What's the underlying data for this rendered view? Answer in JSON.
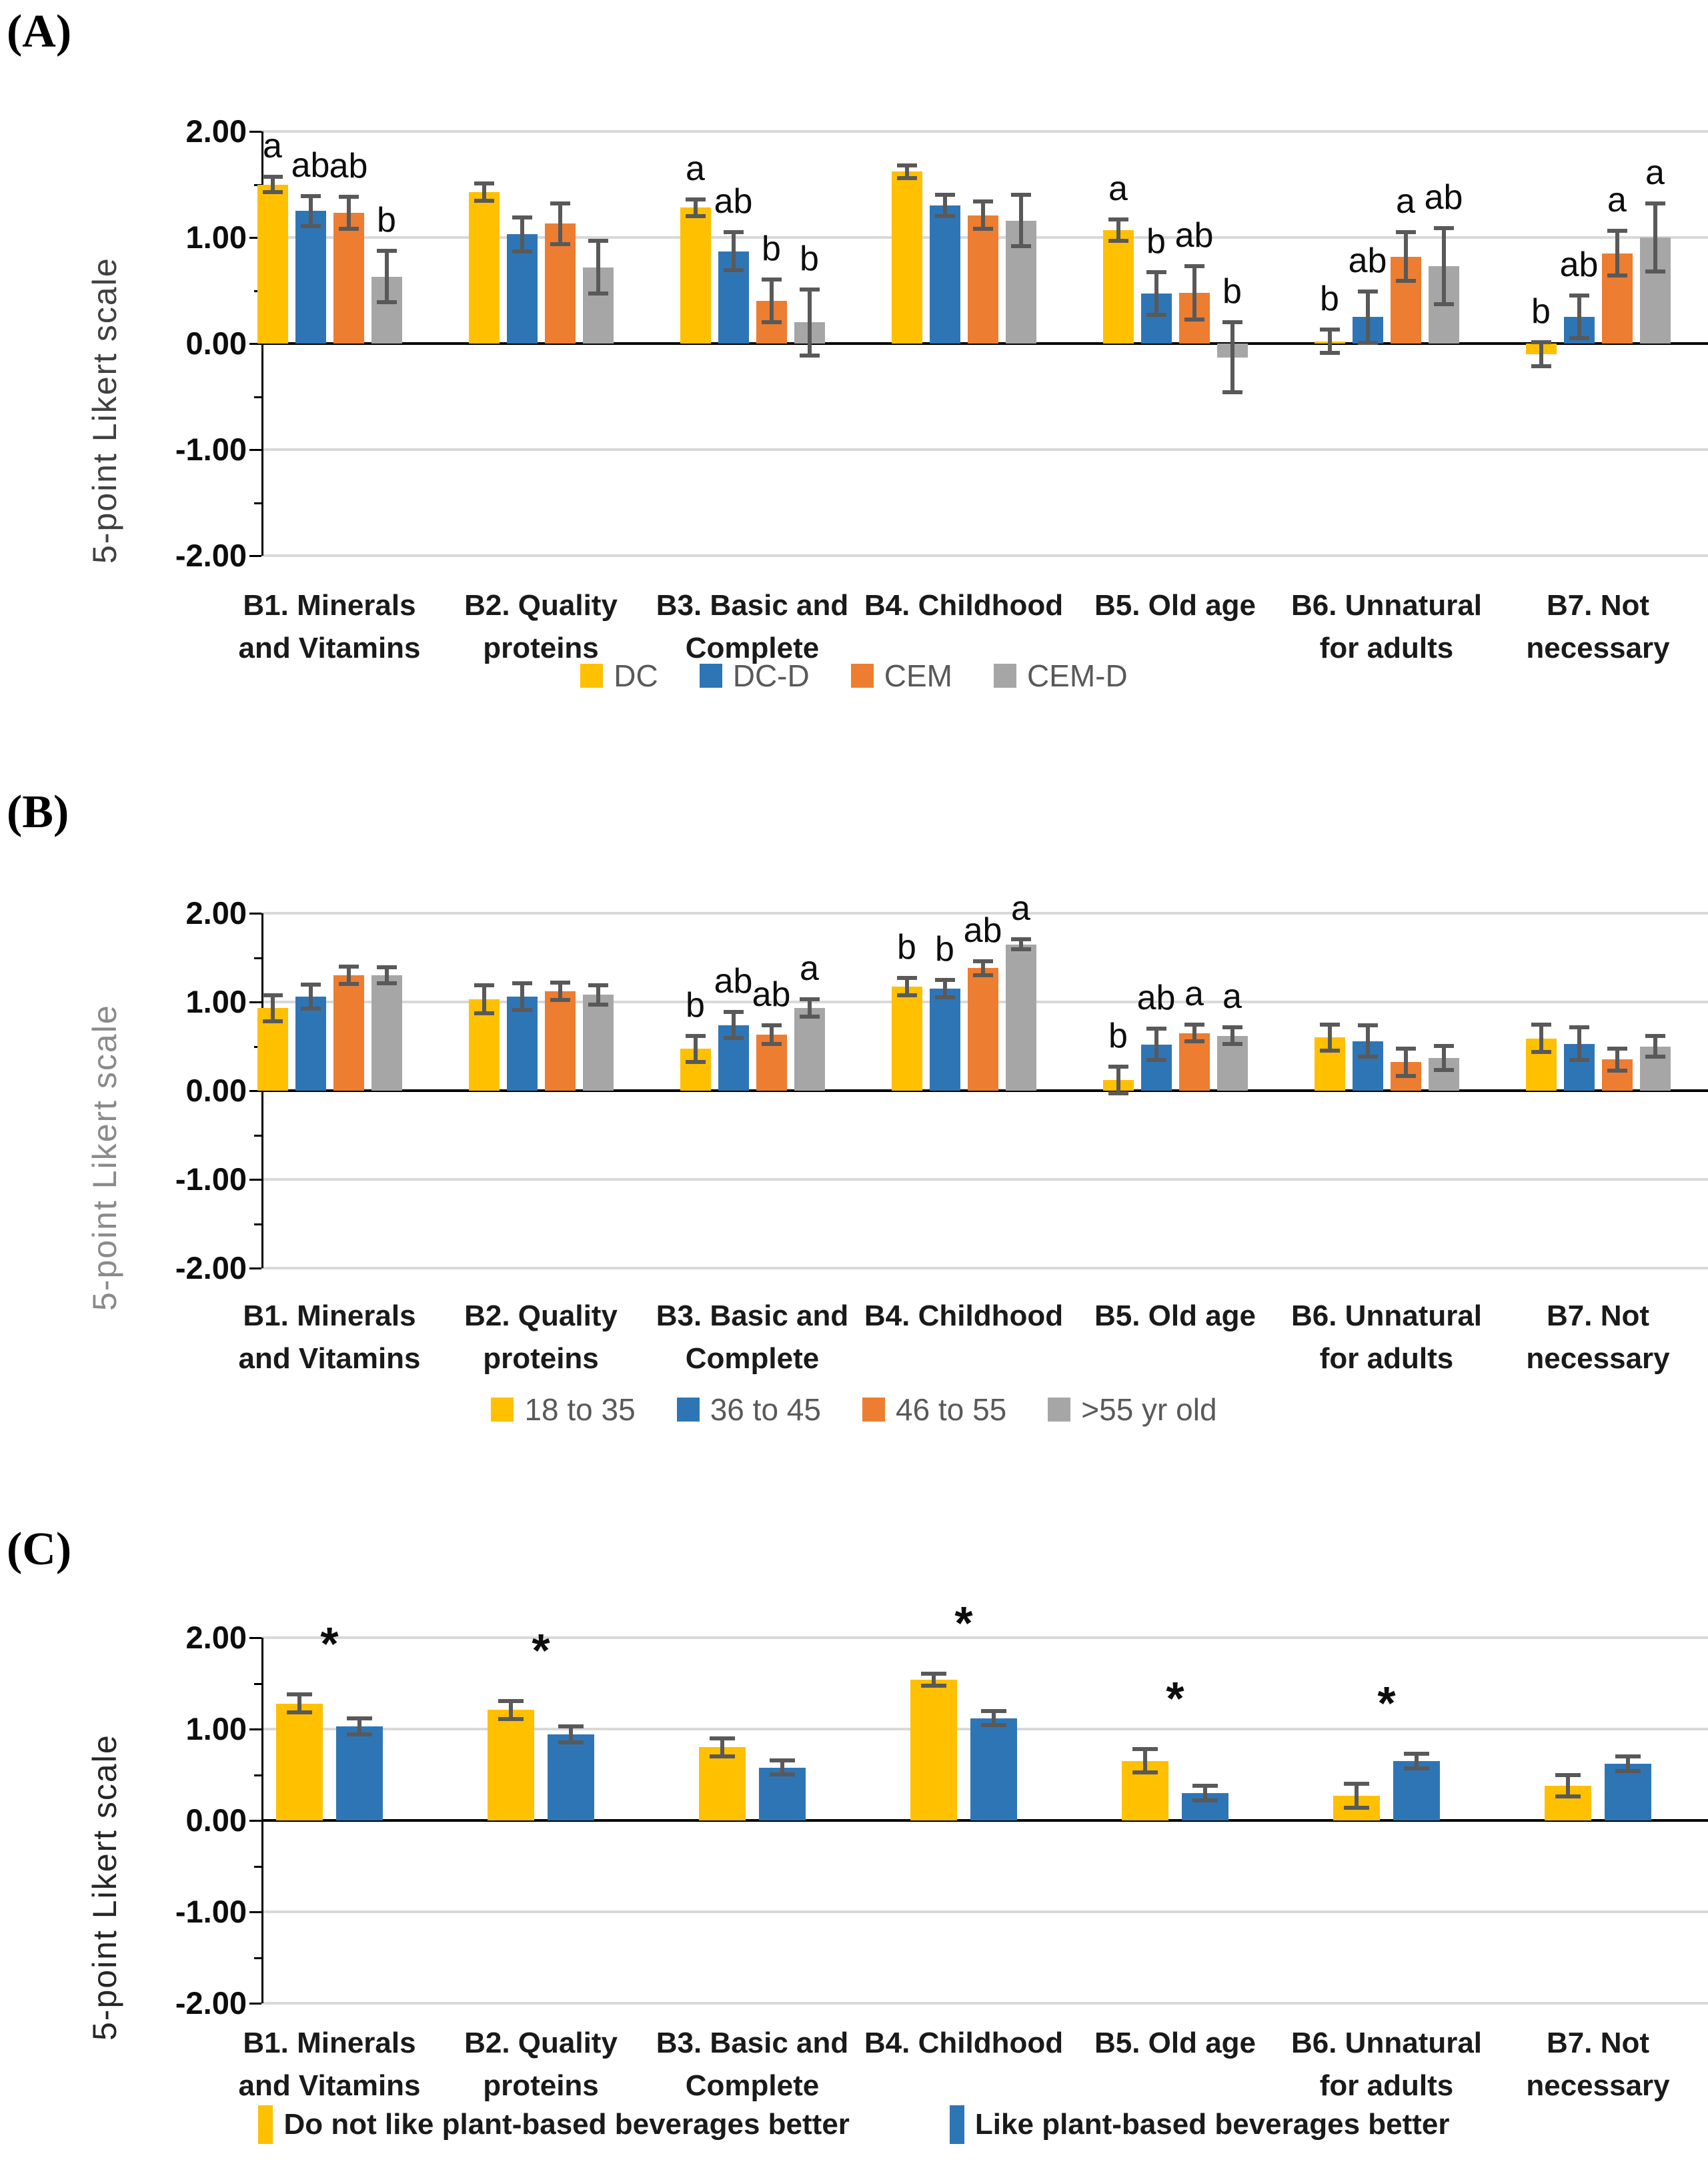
{
  "figure": {
    "panel_letters": [
      "(A)",
      "(B)",
      "(C)"
    ],
    "y_axis_title": "5-point Likert scale",
    "colors": {
      "yellow": "#FFC000",
      "blue": "#2E75B6",
      "orange": "#ED7D31",
      "gray": "#A6A6A6",
      "error_bar": "#595959",
      "gridline": "#D9D9D9",
      "zero_line": "#000000",
      "legend_text_ab": "#595959",
      "legend_text_c": "#1a1a1a",
      "y_title_a": "#404040",
      "y_title_b": "#8a8a8a",
      "y_title_c": "#262626"
    }
  },
  "chart_data": [
    {
      "type": "bar",
      "panel": "(A)",
      "ylabel": "5-point Likert scale",
      "ylim": [
        -2.0,
        2.0
      ],
      "ytick_values": [
        2,
        1,
        0,
        -1,
        -2
      ],
      "ytick_labels": [
        "2.00",
        "1.00",
        "0.00",
        "-1.00",
        "-2.00"
      ],
      "grid": true,
      "legend_position": "bottom",
      "categories": [
        "B1. Minerals and Vitamins",
        "B2. Quality proteins",
        "B3. Basic and Complete",
        "B4. Childhood",
        "B5. Old age",
        "B6. Unnatural for adults",
        "B7. Not necessary"
      ],
      "category_lines": [
        [
          "B1. Minerals",
          "and Vitamins"
        ],
        [
          "B2. Quality",
          "proteins"
        ],
        [
          "B3. Basic and",
          "Complete"
        ],
        [
          "B4. Childhood"
        ],
        [
          "B5. Old age"
        ],
        [
          "B6. Unnatural",
          "for adults"
        ],
        [
          "B7. Not",
          "necessary"
        ]
      ],
      "series": [
        {
          "name": "DC",
          "color_key": "yellow",
          "values": [
            1.5,
            1.43,
            1.28,
            1.62,
            1.07,
            0.02,
            -0.1
          ],
          "errors": [
            0.09,
            0.1,
            0.1,
            0.08,
            0.12,
            0.13,
            0.13
          ],
          "letters": [
            "a",
            "",
            "a",
            "",
            "a",
            "b",
            "b"
          ]
        },
        {
          "name": "DC-D",
          "color_key": "blue",
          "values": [
            1.25,
            1.03,
            0.87,
            1.3,
            0.47,
            0.25,
            0.25
          ],
          "errors": [
            0.16,
            0.18,
            0.2,
            0.12,
            0.22,
            0.26,
            0.22
          ],
          "letters": [
            "ab",
            "",
            "ab",
            "",
            "b",
            "ab",
            "ab"
          ]
        },
        {
          "name": "CEM",
          "color_key": "orange",
          "values": [
            1.23,
            1.13,
            0.4,
            1.21,
            0.48,
            0.82,
            0.85
          ],
          "errors": [
            0.17,
            0.21,
            0.22,
            0.15,
            0.27,
            0.25,
            0.23
          ],
          "letters": [
            "ab",
            "",
            "b",
            "",
            "ab",
            "a",
            "a"
          ]
        },
        {
          "name": "CEM-D",
          "color_key": "gray",
          "values": [
            0.63,
            0.72,
            0.2,
            1.16,
            -0.13,
            0.73,
            1.0
          ],
          "errors": [
            0.26,
            0.27,
            0.33,
            0.26,
            0.35,
            0.38,
            0.34
          ],
          "letters": [
            "b",
            "",
            "b",
            "",
            "b",
            "ab",
            "a"
          ]
        }
      ],
      "asterisks": [
        "",
        "",
        "",
        "",
        "",
        "",
        ""
      ]
    },
    {
      "type": "bar",
      "panel": "(B)",
      "ylabel": "5-point Likert scale",
      "ylim": [
        -2.0,
        2.0
      ],
      "ytick_values": [
        2,
        1,
        0,
        -1,
        -2
      ],
      "ytick_labels": [
        "2.00",
        "1.00",
        "0.00",
        "-1.00",
        "-2.00"
      ],
      "grid": true,
      "legend_position": "bottom",
      "categories": [
        "B1. Minerals and Vitamins",
        "B2. Quality proteins",
        "B3. Basic and Complete",
        "B4. Childhood",
        "B5. Old age",
        "B6. Unnatural for adults",
        "B7. Not necessary"
      ],
      "category_lines": [
        [
          "B1. Minerals",
          "and Vitamins"
        ],
        [
          "B2. Quality",
          "proteins"
        ],
        [
          "B3. Basic and",
          "Complete"
        ],
        [
          "B4. Childhood"
        ],
        [
          "B5. Old age"
        ],
        [
          "B6. Unnatural",
          "for adults"
        ],
        [
          "B7. Not",
          "necessary"
        ]
      ],
      "series": [
        {
          "name": "18 to 35",
          "color_key": "yellow",
          "values": [
            0.93,
            1.03,
            0.47,
            1.17,
            0.12,
            0.6,
            0.59
          ],
          "errors": [
            0.17,
            0.18,
            0.17,
            0.12,
            0.17,
            0.17,
            0.18
          ],
          "letters": [
            "",
            "",
            "b",
            "b",
            "b",
            "",
            ""
          ]
        },
        {
          "name": "36 to 45",
          "color_key": "blue",
          "values": [
            1.06,
            1.06,
            0.74,
            1.15,
            0.52,
            0.56,
            0.53
          ],
          "errors": [
            0.16,
            0.17,
            0.17,
            0.12,
            0.2,
            0.2,
            0.21
          ],
          "letters": [
            "",
            "",
            "ab",
            "b",
            "ab",
            "",
            ""
          ]
        },
        {
          "name": "46 to 55",
          "color_key": "orange",
          "values": [
            1.3,
            1.12,
            0.63,
            1.38,
            0.65,
            0.32,
            0.35
          ],
          "errors": [
            0.12,
            0.12,
            0.13,
            0.1,
            0.12,
            0.18,
            0.15
          ],
          "letters": [
            "",
            "",
            "ab",
            "ab",
            "a",
            "",
            ""
          ]
        },
        {
          "name": ">55 yr old",
          "color_key": "gray",
          "values": [
            1.3,
            1.08,
            0.93,
            1.65,
            0.62,
            0.37,
            0.5
          ],
          "errors": [
            0.11,
            0.13,
            0.12,
            0.08,
            0.12,
            0.16,
            0.14
          ],
          "letters": [
            "",
            "",
            "a",
            "a",
            "a",
            "",
            ""
          ]
        }
      ],
      "asterisks": [
        "",
        "",
        "",
        "",
        "",
        "",
        ""
      ]
    },
    {
      "type": "bar",
      "panel": "(C)",
      "ylabel": "5-point Likert scale",
      "ylim": [
        -2.0,
        2.0
      ],
      "ytick_values": [
        2,
        1,
        0,
        -1,
        -2
      ],
      "ytick_labels": [
        "2.00",
        "1.00",
        "0.00",
        "-1.00",
        "-2.00"
      ],
      "grid": true,
      "legend_position": "bottom",
      "categories": [
        "B1. Minerals and Vitamins",
        "B2. Quality proteins",
        "B3. Basic and Complete",
        "B4. Childhood",
        "B5. Old age",
        "B6. Unnatural for adults",
        "B7. Not necessary"
      ],
      "category_lines": [
        [
          "B1. Minerals",
          "and Vitamins"
        ],
        [
          "B2. Quality",
          "proteins"
        ],
        [
          "B3. Basic and",
          "Complete"
        ],
        [
          "B4. Childhood"
        ],
        [
          "B5. Old age"
        ],
        [
          "B6. Unnatural",
          "for adults"
        ],
        [
          "B7. Not",
          "necessary"
        ]
      ],
      "series": [
        {
          "name": "Do not like plant-based beverages better",
          "color_key": "yellow",
          "values": [
            1.28,
            1.21,
            0.8,
            1.54,
            0.65,
            0.27,
            0.38
          ],
          "errors": [
            0.12,
            0.12,
            0.12,
            0.09,
            0.15,
            0.15,
            0.14
          ],
          "letters": [
            "",
            "",
            "",
            "",
            "",
            "",
            ""
          ]
        },
        {
          "name": "Like plant-based beverages better",
          "color_key": "blue",
          "values": [
            1.03,
            0.94,
            0.58,
            1.12,
            0.3,
            0.65,
            0.62
          ],
          "errors": [
            0.11,
            0.11,
            0.1,
            0.1,
            0.1,
            0.1,
            0.1
          ],
          "letters": [
            "",
            "",
            "",
            "",
            "",
            "",
            ""
          ]
        }
      ],
      "asterisks": [
        "*",
        "*",
        "",
        "*",
        "*",
        "*",
        ""
      ]
    }
  ]
}
